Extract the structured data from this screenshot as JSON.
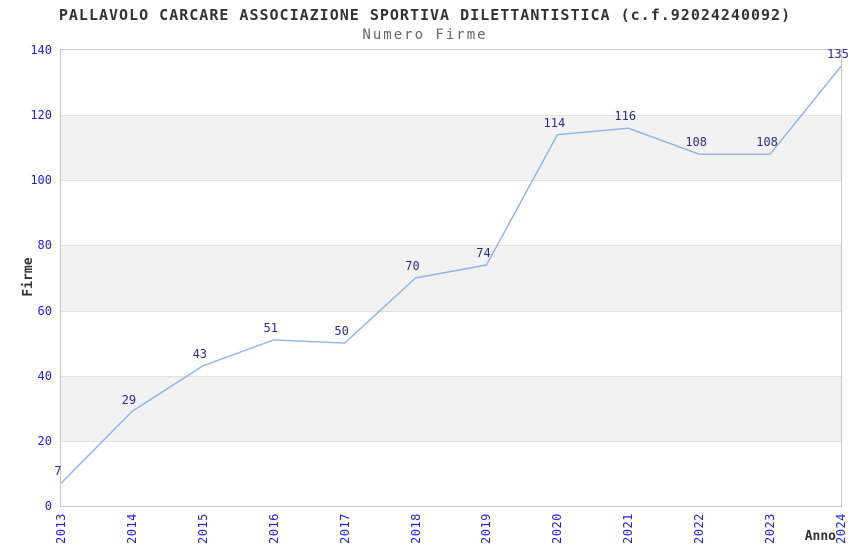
{
  "header": {
    "title": "PALLAVOLO CARCARE ASSOCIAZIONE SPORTIVA DILETTANTISTICA (c.f.92024240092)",
    "subtitle": "Numero Firme"
  },
  "chart_data": {
    "type": "line",
    "title": "PALLAVOLO CARCARE ASSOCIAZIONE SPORTIVA DILETTANTISTICA (c.f.92024240092)",
    "subtitle": "Numero Firme",
    "xlabel": "Anno",
    "ylabel": "Firme",
    "categories": [
      "2013",
      "2014",
      "2015",
      "2016",
      "2017",
      "2018",
      "2019",
      "2020",
      "2021",
      "2022",
      "2023",
      "2024"
    ],
    "series": [
      {
        "name": "Numero Firme",
        "values": [
          7,
          29,
          43,
          51,
          50,
          70,
          74,
          114,
          116,
          108,
          108,
          135
        ]
      }
    ],
    "ylim": [
      0,
      140
    ],
    "ytick_step": 20,
    "yticks": [
      0,
      20,
      40,
      60,
      80,
      100,
      120,
      140
    ],
    "grid": "horizontal-gridlines-with-alternating-bands",
    "legend_position": "none",
    "point_labels_visible": true,
    "colors": {
      "line": "#8cb4e6",
      "tick_label": "#2424cc",
      "data_label": "#2d2d85",
      "band": "#f2f2f2",
      "gridline": "#e0e0e0",
      "plot_border": "#c6c6c6",
      "title": "#333333",
      "subtitle": "#666666",
      "axis_title": "#333333",
      "background": "#ffffff"
    }
  }
}
